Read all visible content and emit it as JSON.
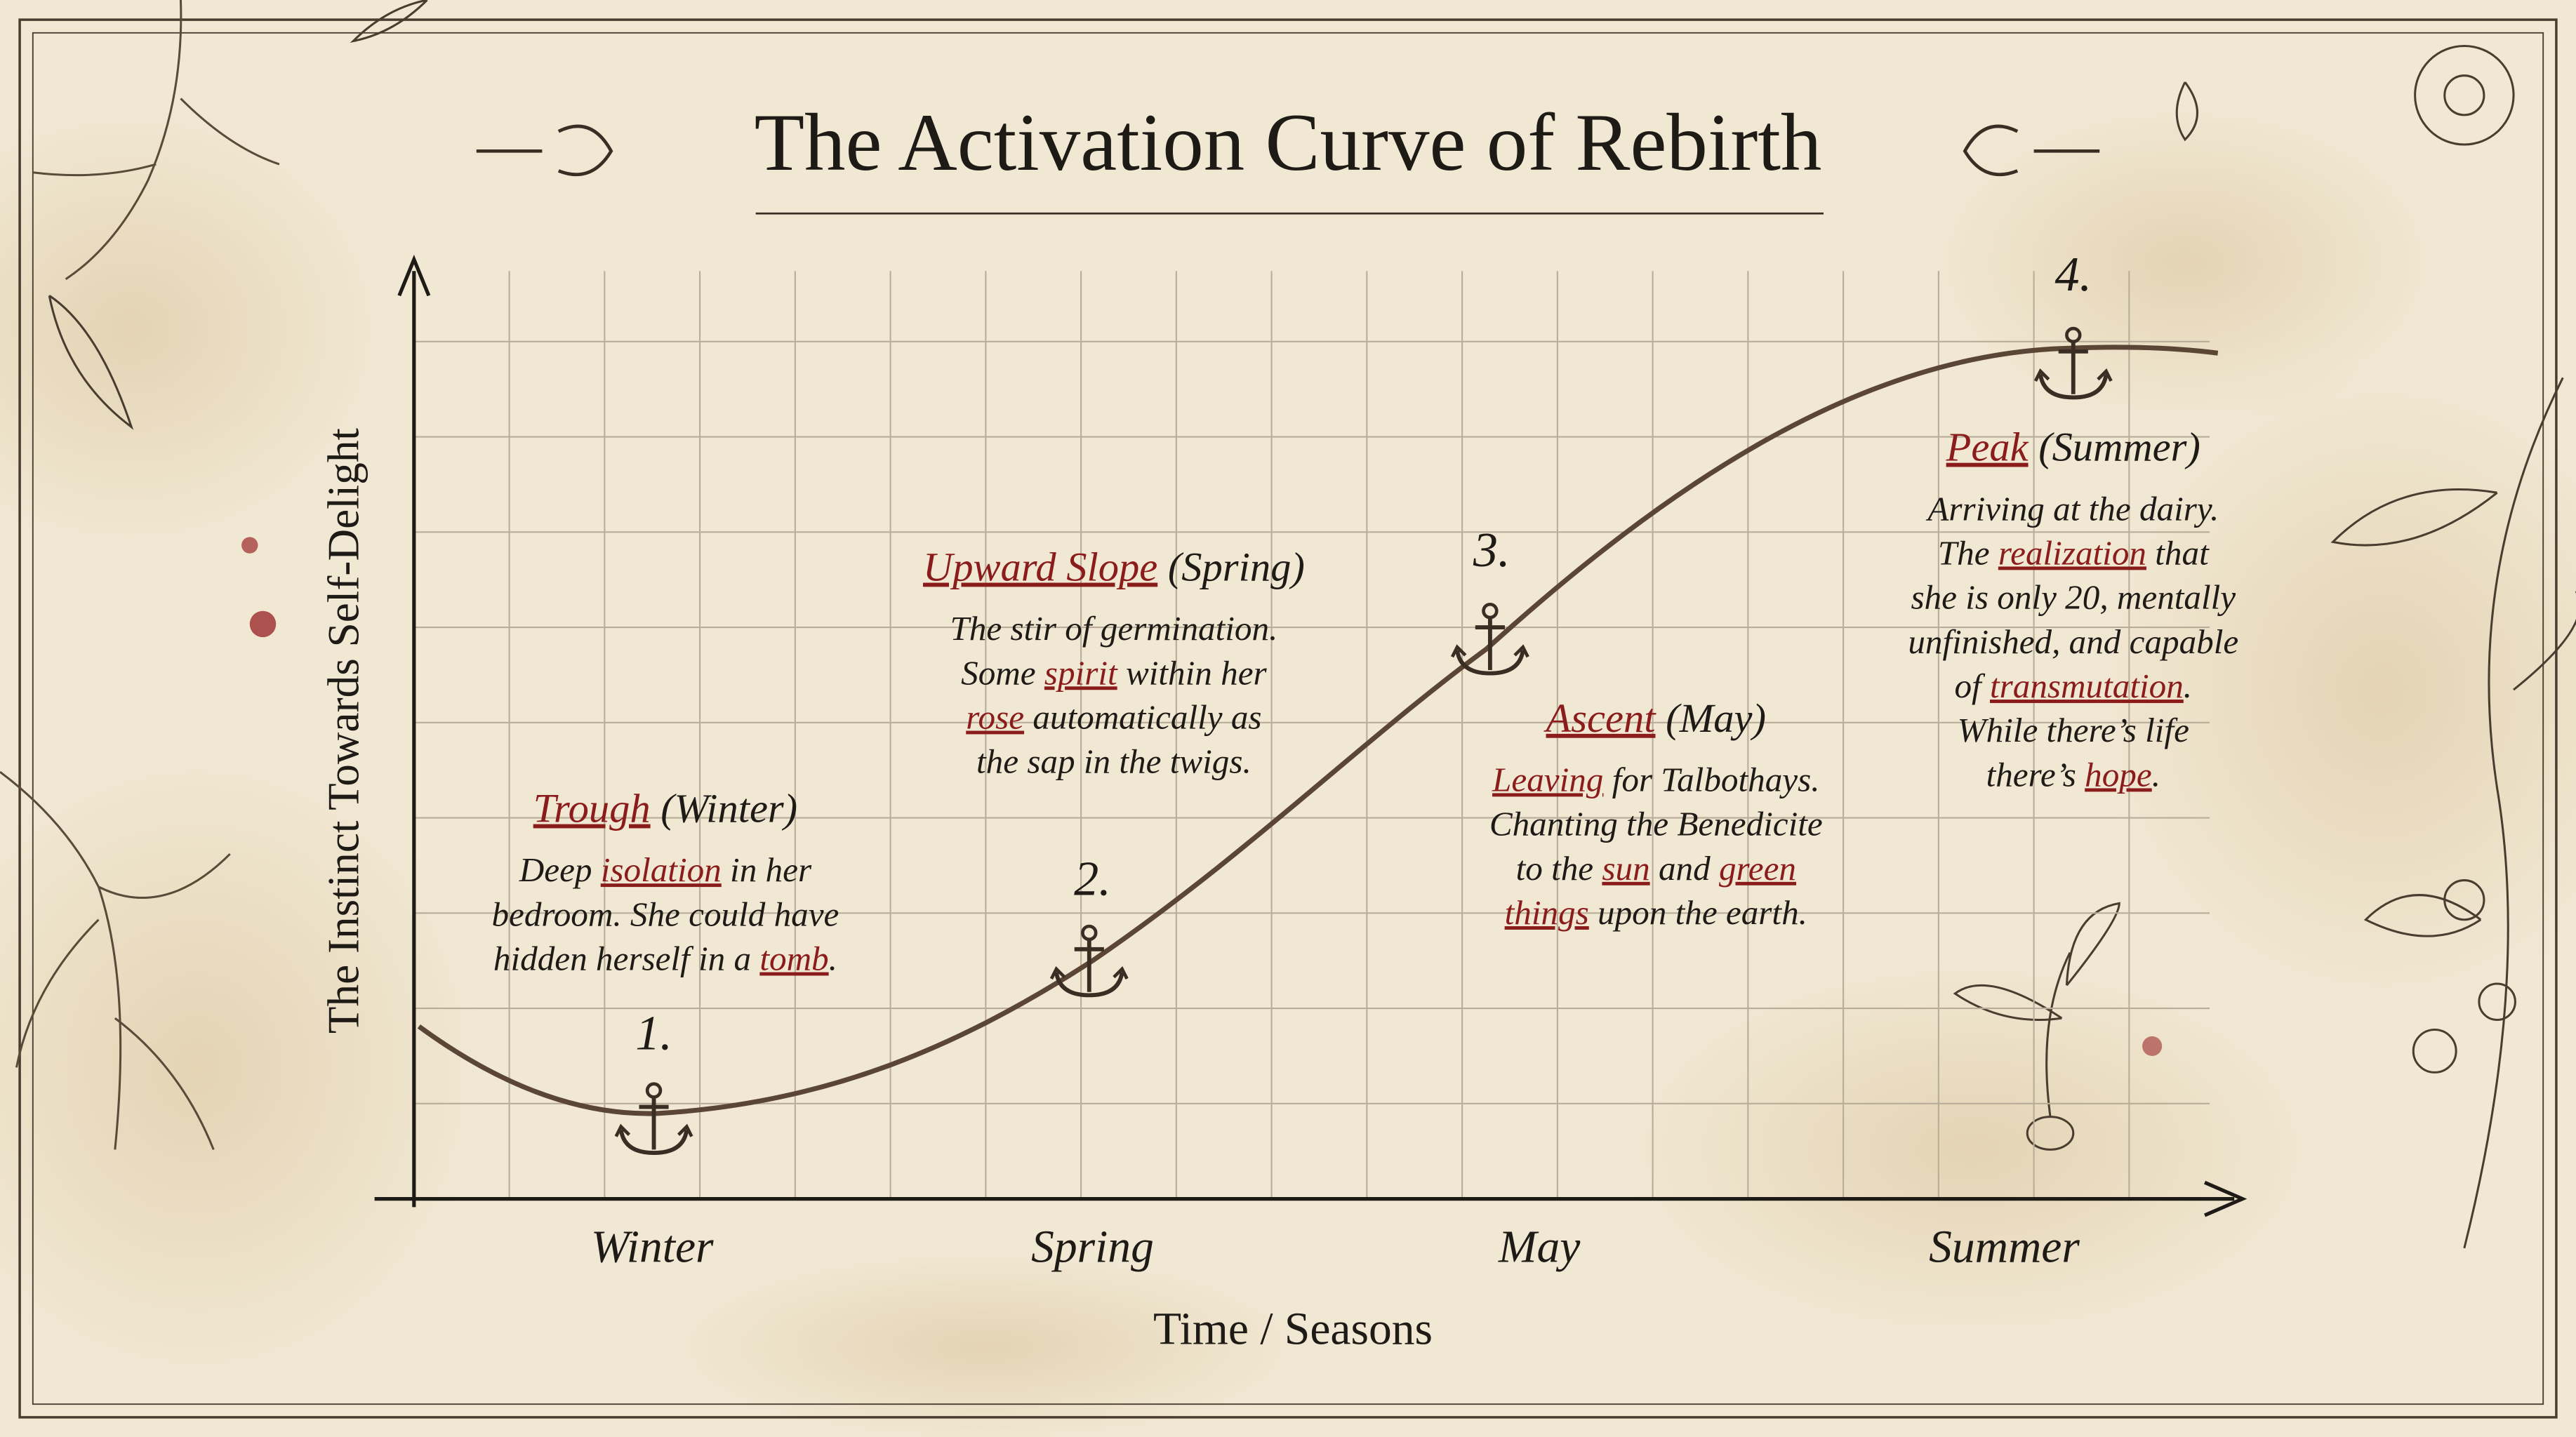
{
  "title": "The Activation Curve of Rebirth",
  "y_axis_label": "The Instinct Towards Self-Delight",
  "x_axis_label": "Time / Seasons",
  "categories": [
    "Winter",
    "Spring",
    "May",
    "Summer"
  ],
  "stages": [
    {
      "number": "1.",
      "heading": [
        {
          "text": "Trough",
          "highlight": true
        },
        {
          "text": " (Winter)"
        }
      ],
      "lines": [
        [
          {
            "text": "Deep "
          },
          {
            "text": "isolation",
            "highlight": true
          },
          {
            "text": " in her"
          }
        ],
        [
          {
            "text": "bedroom. She could have"
          }
        ],
        [
          {
            "text": "hidden herself in a "
          },
          {
            "text": "tomb",
            "highlight": true
          },
          {
            "text": "."
          }
        ]
      ]
    },
    {
      "number": "2.",
      "heading": [
        {
          "text": "Upward Slope",
          "highlight": true
        },
        {
          "text": " (Spring)"
        }
      ],
      "lines": [
        [
          {
            "text": "The stir of germination."
          }
        ],
        [
          {
            "text": "Some "
          },
          {
            "text": "spirit",
            "highlight": true
          },
          {
            "text": " within her"
          }
        ],
        [
          {
            "text": "rose",
            "highlight": true
          },
          {
            "text": " automatically as"
          }
        ],
        [
          {
            "text": "the sap in the twigs."
          }
        ]
      ]
    },
    {
      "number": "3.",
      "heading": [
        {
          "text": "Ascent",
          "highlight": true
        },
        {
          "text": " (May)"
        }
      ],
      "lines": [
        [
          {
            "text": "Leaving",
            "highlight": true
          },
          {
            "text": " for Talbothays."
          }
        ],
        [
          {
            "text": "Chanting the Benedicite"
          }
        ],
        [
          {
            "text": "to the "
          },
          {
            "text": "sun",
            "highlight": true
          },
          {
            "text": " and "
          },
          {
            "text": "green",
            "highlight": true
          }
        ],
        [
          {
            "text": "things",
            "highlight": true
          },
          {
            "text": " upon the earth."
          }
        ]
      ]
    },
    {
      "number": "4.",
      "heading": [
        {
          "text": "Peak",
          "highlight": true
        },
        {
          "text": " (Summer)"
        }
      ],
      "lines": [
        [
          {
            "text": "Arriving at the dairy."
          }
        ],
        [
          {
            "text": "The "
          },
          {
            "text": "realization",
            "highlight": true
          },
          {
            "text": " that"
          }
        ],
        [
          {
            "text": "she is only 20, mentally"
          }
        ],
        [
          {
            "text": "unfinished, and capable"
          }
        ],
        [
          {
            "text": "of "
          },
          {
            "text": "transmutation",
            "highlight": true
          },
          {
            "text": "."
          }
        ],
        [
          {
            "text": "While there’s life"
          }
        ],
        [
          {
            "text": "there’s "
          },
          {
            "text": "hope",
            "highlight": true
          },
          {
            "text": "."
          }
        ]
      ]
    }
  ]
}
